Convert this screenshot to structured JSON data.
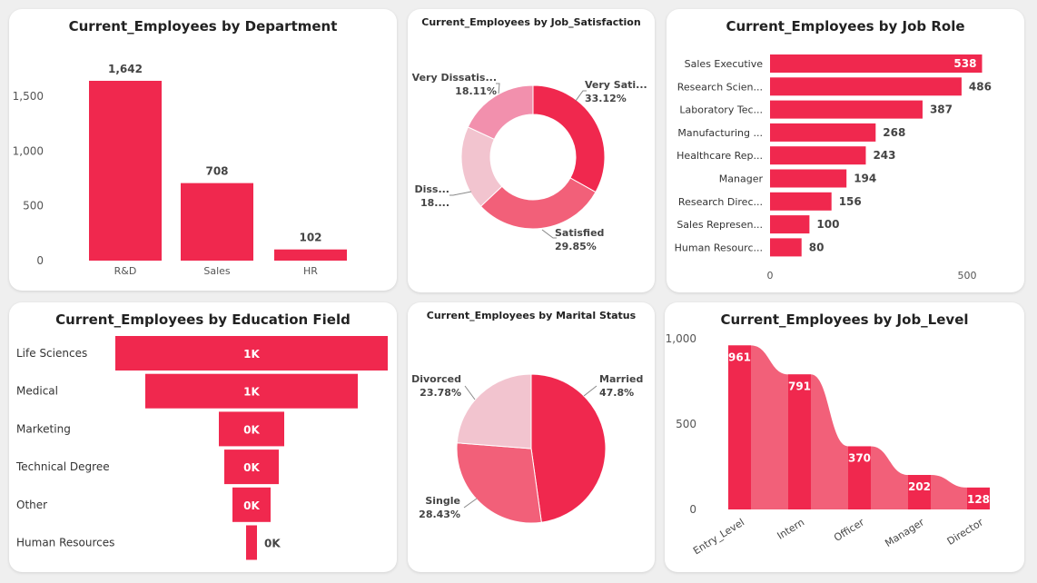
{
  "colors": {
    "primary": "#f0284e",
    "medium": "#f26079",
    "light": "#f290ad",
    "pale": "#f2c4cf",
    "text": "#333333"
  },
  "chart_data": [
    {
      "id": "department",
      "type": "bar",
      "title": "Current_Employees by Department",
      "categories": [
        "R&D",
        "Sales",
        "HR"
      ],
      "values": [
        1642,
        708,
        102
      ],
      "value_labels": [
        "1,642",
        "708",
        "102"
      ],
      "y_ticks": [
        0,
        500,
        1000,
        1500
      ],
      "y_tick_labels": [
        "0",
        "500",
        "1,000",
        "1,500"
      ],
      "ylim": [
        0,
        1700
      ]
    },
    {
      "id": "job_satisfaction",
      "type": "pie",
      "variant": "donut",
      "title": "Current_Employees by Job_Satisfaction",
      "slices": [
        {
          "label": "Very Sati...",
          "pct_label": "33.12%",
          "value": 33.12
        },
        {
          "label": "Satisfied",
          "pct_label": "29.85%",
          "value": 29.85
        },
        {
          "label": "Diss...",
          "pct_label": "18....",
          "value": 18.92
        },
        {
          "label": "Very Dissatis...",
          "pct_label": "18.11%",
          "value": 18.11
        }
      ]
    },
    {
      "id": "job_role",
      "type": "bar",
      "orientation": "horizontal",
      "title": "Current_Employees by Job Role",
      "categories": [
        "Sales Executive",
        "Research Scien...",
        "Laboratory Tec...",
        "Manufacturing ...",
        "Healthcare Rep...",
        "Manager",
        "Research Direc...",
        "Sales Represen...",
        "Human Resourc..."
      ],
      "values": [
        538,
        486,
        387,
        268,
        243,
        194,
        156,
        100,
        80
      ],
      "x_ticks": [
        0,
        500
      ],
      "xlim": [
        0,
        560
      ]
    },
    {
      "id": "education_field",
      "type": "bar",
      "variant": "funnel",
      "title": "Current_Employees by Education Field",
      "categories": [
        "Life Sciences",
        "Medical",
        "Marketing",
        "Technical Degree",
        "Other",
        "Human Resources"
      ],
      "values": [
        1000,
        780,
        240,
        200,
        140,
        40
      ],
      "value_labels": [
        "1K",
        "1K",
        "0K",
        "0K",
        "0K",
        "0K"
      ]
    },
    {
      "id": "marital_status",
      "type": "pie",
      "title": "Current_Employees by Marital Status",
      "slices": [
        {
          "label": "Married",
          "pct_label": "47.8%",
          "value": 47.8
        },
        {
          "label": "Single",
          "pct_label": "28.43%",
          "value": 28.43
        },
        {
          "label": "Divorced",
          "pct_label": "23.78%",
          "value": 23.78
        }
      ]
    },
    {
      "id": "job_level",
      "type": "area",
      "variant": "ribbon",
      "title": "Current_Employees by Job_Level",
      "categories": [
        "Entry_Level",
        "Intern",
        "Officer",
        "Manager",
        "Director"
      ],
      "values": [
        961,
        791,
        370,
        202,
        128
      ],
      "value_labels": [
        "961",
        "791",
        "370",
        "202",
        "128"
      ],
      "y_ticks": [
        0,
        500,
        1000
      ],
      "y_tick_labels": [
        "0",
        "500",
        "1,000"
      ],
      "ylim": [
        0,
        1000
      ]
    }
  ]
}
